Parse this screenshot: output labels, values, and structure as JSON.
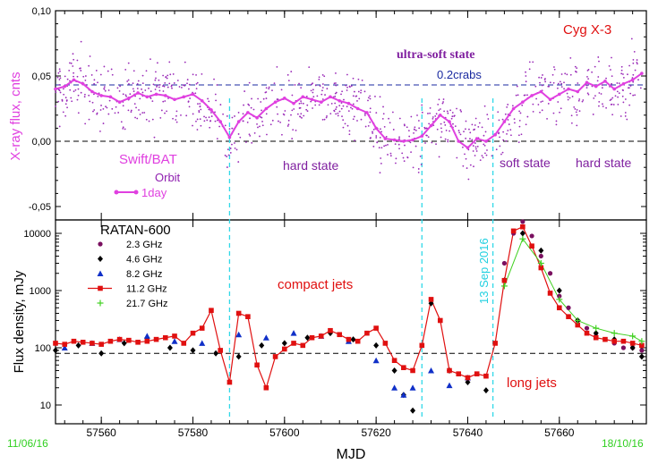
{
  "chart_data": [
    {
      "type": "scatter",
      "title": "Cyg X-3",
      "ylabel": "X-ray flux, cnts",
      "ylim": [
        -0.06,
        0.1
      ],
      "y_ticks": [
        "0,10",
        "0,05",
        "0,00",
        "-0,05"
      ],
      "xlim": [
        57550,
        57679
      ],
      "instrument": "Swift/BAT",
      "legend": {
        "orbit": "Orbit",
        "day": "1day"
      },
      "reference_line": {
        "label": "0.2crabs",
        "y": 0.045
      },
      "annotations": [
        "ultra-soft state",
        "hard state",
        "soft state",
        "hard state"
      ],
      "series": [
        {
          "name": "1day",
          "x": [
            57550,
            57552,
            57554,
            57556,
            57558,
            57560,
            57562,
            57564,
            57566,
            57568,
            57570,
            57572,
            57574,
            57576,
            57578,
            57580,
            57582,
            57584,
            57586,
            57588,
            57590,
            57592,
            57594,
            57596,
            57598,
            57600,
            57602,
            57604,
            57606,
            57608,
            57610,
            57612,
            57614,
            57616,
            57618,
            57620,
            57622,
            57624,
            57626,
            57628,
            57630,
            57632,
            57634,
            57636,
            57638,
            57640,
            57642,
            57644,
            57646,
            57648,
            57650,
            57652,
            57654,
            57656,
            57658,
            57660,
            57662,
            57664,
            57666,
            57668,
            57670,
            57672,
            57674,
            57676,
            57678
          ],
          "values": [
            0.04,
            0.042,
            0.047,
            0.044,
            0.038,
            0.035,
            0.034,
            0.03,
            0.033,
            0.037,
            0.034,
            0.036,
            0.035,
            0.032,
            0.034,
            0.036,
            0.031,
            0.024,
            0.015,
            0.003,
            0.015,
            0.022,
            0.018,
            0.025,
            0.03,
            0.033,
            0.029,
            0.034,
            0.032,
            0.03,
            0.034,
            0.031,
            0.029,
            0.025,
            0.022,
            0.01,
            0.002,
            0.001,
            0.0,
            0.001,
            0.004,
            0.012,
            0.02,
            0.015,
            0.0,
            -0.005,
            0.002,
            0.0,
            0.005,
            0.015,
            0.025,
            0.03,
            0.035,
            0.038,
            0.032,
            0.036,
            0.04,
            0.038,
            0.045,
            0.042,
            0.046,
            0.04,
            0.044,
            0.047,
            0.052
          ]
        }
      ]
    },
    {
      "type": "line",
      "title": "RATAN-600",
      "xlabel": "MJD",
      "ylabel": "Flux density, mJy",
      "yscale": "log",
      "ylim": [
        5,
        15000
      ],
      "y_ticks": [
        "10000",
        "1000",
        "100",
        "10"
      ],
      "xlim": [
        57550,
        57679
      ],
      "x_ticks": [
        57560,
        57580,
        57600,
        57620,
        57640,
        57660
      ],
      "date_labels": {
        "start": "11/06/16",
        "end": "18/10/16"
      },
      "vertical_lines_mjd": [
        57588,
        57630,
        57645.5
      ],
      "event_label": "13 Sep 2016",
      "reference_line": {
        "y": 80
      },
      "annotations": [
        "compact jets",
        "long jets"
      ],
      "series": [
        {
          "name": "2.3 GHz",
          "color": "#7a1060",
          "x": [
            57648,
            57650,
            57652,
            57654,
            57656,
            57658,
            57660,
            57662,
            57664,
            57666,
            57668,
            57670,
            57672,
            57674,
            57676,
            57678
          ],
          "values": [
            3000,
            10000,
            16000,
            9000,
            4000,
            2000,
            800,
            500,
            300,
            220,
            160,
            140,
            120,
            100,
            100,
            90
          ]
        },
        {
          "name": "4.6 GHz",
          "color": "#000000",
          "x": [
            57550,
            57555,
            57560,
            57565,
            57570,
            57575,
            57580,
            57585,
            57590,
            57595,
            57600,
            57605,
            57610,
            57615,
            57620,
            57624,
            57626,
            57628,
            57632,
            57636,
            57640,
            57644,
            57648,
            57652,
            57656,
            57660,
            57664,
            57668,
            57672,
            57676,
            57678
          ],
          "values": [
            90,
            110,
            80,
            120,
            150,
            100,
            90,
            80,
            70,
            110,
            120,
            150,
            180,
            140,
            110,
            40,
            15,
            8,
            600,
            40,
            25,
            18,
            1500,
            10000,
            5000,
            1000,
            300,
            180,
            140,
            100,
            70
          ]
        },
        {
          "name": "8.2 GHz",
          "color": "#1030c8",
          "x": [
            57552,
            57558,
            57564,
            57570,
            57576,
            57582,
            57590,
            57596,
            57602,
            57608,
            57614,
            57620,
            57624,
            57626,
            57628,
            57632,
            57636,
            57640
          ],
          "values": [
            100,
            120,
            140,
            160,
            130,
            120,
            170,
            150,
            180,
            160,
            130,
            60,
            20,
            15,
            20,
            40,
            22,
            30
          ]
        },
        {
          "name": "11.2 GHz",
          "color": "#e01010",
          "x": [
            57550,
            57552,
            57554,
            57556,
            57558,
            57560,
            57562,
            57564,
            57566,
            57568,
            57570,
            57572,
            57574,
            57576,
            57578,
            57580,
            57582,
            57584,
            57586,
            57588,
            57590,
            57592,
            57594,
            57596,
            57598,
            57600,
            57602,
            57604,
            57606,
            57608,
            57610,
            57612,
            57614,
            57616,
            57618,
            57620,
            57622,
            57624,
            57626,
            57628,
            57630,
            57632,
            57634,
            57636,
            57638,
            57640,
            57642,
            57644,
            57646,
            57648,
            57650,
            57652,
            57654,
            57656,
            57658,
            57660,
            57662,
            57664,
            57666,
            57668,
            57670,
            57672,
            57674,
            57676,
            57678
          ],
          "values": [
            120,
            115,
            130,
            125,
            120,
            115,
            130,
            140,
            135,
            125,
            130,
            140,
            150,
            160,
            120,
            180,
            220,
            450,
            90,
            25,
            400,
            350,
            50,
            20,
            70,
            95,
            120,
            110,
            150,
            160,
            200,
            170,
            140,
            130,
            180,
            220,
            120,
            60,
            45,
            40,
            110,
            700,
            300,
            40,
            35,
            30,
            35,
            32,
            120,
            1500,
            11000,
            13000,
            6000,
            2500,
            900,
            500,
            350,
            250,
            180,
            150,
            140,
            130,
            130,
            120,
            110
          ]
        },
        {
          "name": "21.7 GHz",
          "color": "#40d020",
          "x": [
            57648,
            57652,
            57656,
            57660,
            57664,
            57668,
            57672,
            57676,
            57678
          ],
          "values": [
            1200,
            8000,
            3000,
            700,
            300,
            220,
            180,
            160,
            130
          ]
        }
      ]
    }
  ]
}
